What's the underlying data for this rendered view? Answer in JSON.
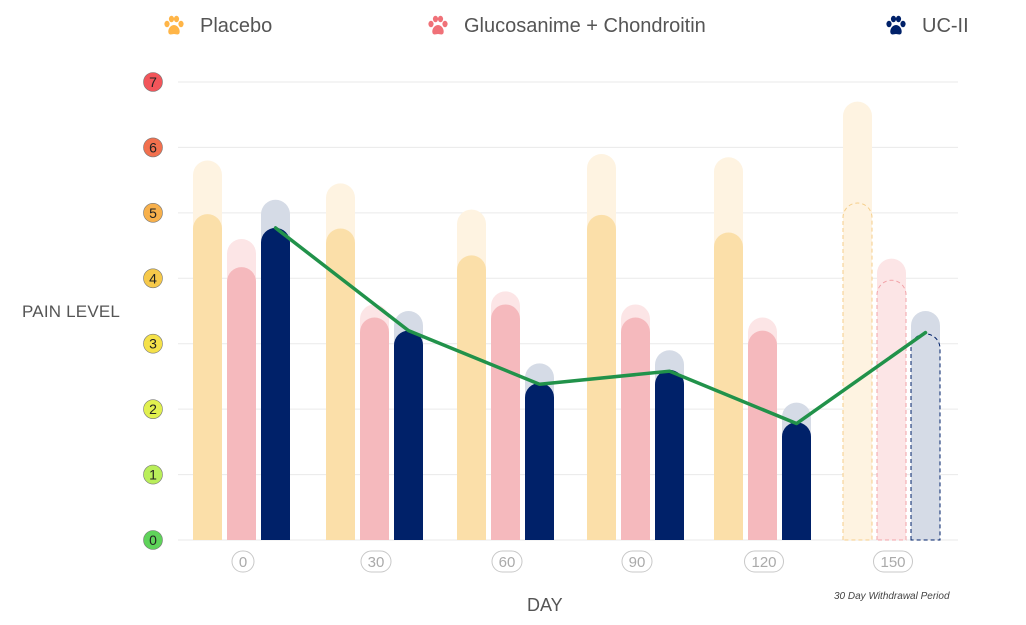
{
  "legend": {
    "items": [
      {
        "label": "Placebo",
        "color": "#FFB547",
        "icon": "paw-icon"
      },
      {
        "label": "Glucosanime + Chondroitin",
        "color": "#F07178",
        "icon": "paw-icon"
      },
      {
        "label": "UC-II",
        "color": "#002169",
        "icon": "paw-icon"
      }
    ]
  },
  "axes": {
    "ylabel": "PAIN LEVEL",
    "xlabel": "DAY",
    "note": "30 Day Withdrawal Period"
  },
  "colors": {
    "placebo_solid": "#FBDFA9",
    "placebo_light": "#FEF3E1",
    "gc_solid": "#F5B9BD",
    "gc_light": "#FCE5E6",
    "ucii_solid": "#002169",
    "ucii_light": "#D5DBE6",
    "line": "#21924A",
    "grid": "#EAEAEA",
    "ytick_colors": [
      "#5FD35A",
      "#B9EE5A",
      "#E1F04F",
      "#F5E14A",
      "#F6C94A",
      "#F7B04B",
      "#F2704E",
      "#F2555A"
    ]
  },
  "chart_data": {
    "type": "bar",
    "title": "",
    "xlabel": "DAY",
    "ylabel": "PAIN LEVEL",
    "ylim": [
      0,
      7
    ],
    "yticks": [
      0,
      1,
      2,
      3,
      4,
      5,
      6,
      7
    ],
    "categories": [
      "0",
      "30",
      "60",
      "90",
      "120",
      "150"
    ],
    "grid": true,
    "legend_position": "top",
    "annotation": "30 Day Withdrawal Period",
    "series": [
      {
        "name": "Placebo",
        "type": "bar",
        "values": [
          4.98,
          4.76,
          4.35,
          4.97,
          4.7,
          5.15
        ],
        "range_top": [
          5.8,
          5.45,
          5.05,
          5.9,
          5.85,
          6.7
        ]
      },
      {
        "name": "Glucosanime + Chondroitin",
        "type": "bar",
        "values": [
          4.17,
          3.4,
          3.6,
          3.4,
          3.2,
          3.97
        ],
        "range_top": [
          4.6,
          3.6,
          3.8,
          3.6,
          3.4,
          4.3
        ]
      },
      {
        "name": "UC-II",
        "type": "bar",
        "values": [
          4.77,
          3.2,
          2.4,
          2.6,
          1.8,
          3.15
        ],
        "range_top": [
          5.2,
          3.5,
          2.7,
          2.9,
          2.1,
          3.5
        ]
      },
      {
        "name": "UC-II trend",
        "type": "line",
        "values": [
          4.77,
          3.2,
          2.38,
          2.58,
          1.78,
          3.17
        ]
      }
    ],
    "withdrawal_category": "150"
  }
}
